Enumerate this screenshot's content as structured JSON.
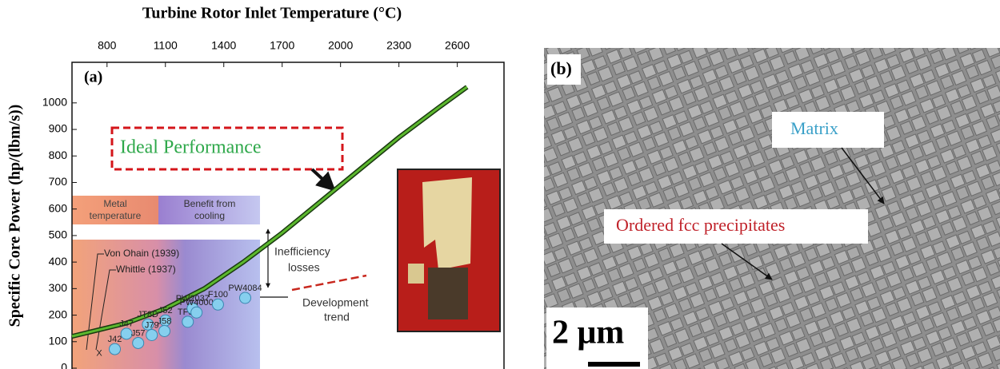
{
  "chart_data": {
    "type": "line",
    "title": "Turbine Rotor Inlet Temperature (°C)",
    "y_label": "Specific Core Power (hp/(lbm/s))",
    "panel_label": "(a)",
    "x": [
      620,
      900,
      1100,
      1300,
      1500,
      1700,
      1900,
      2100,
      2300,
      2500,
      2650
    ],
    "series": [
      {
        "color": "#5cb82e",
        "values": [
          120,
          170,
          225,
          300,
          400,
          510,
          630,
          750,
          870,
          980,
          1060
        ]
      }
    ],
    "xlim": [
      620,
      2840
    ],
    "xticks": [
      800,
      1100,
      1400,
      1700,
      2000,
      2300,
      2600
    ],
    "ylim": [
      0,
      1150
    ],
    "yticks": [
      0,
      100,
      200,
      300,
      400,
      500,
      600,
      700,
      800,
      900,
      1000
    ],
    "points": [
      {
        "label": "X",
        "x": 760,
        "y": 55
      },
      {
        "label": "J42",
        "x": 840,
        "y": 72
      },
      {
        "label": "J47",
        "x": 900,
        "y": 130
      },
      {
        "label": "JT8D",
        "x": 1010,
        "y": 165
      },
      {
        "label": "J79",
        "x": 1030,
        "y": 125
      },
      {
        "label": "J52",
        "x": 1100,
        "y": 180
      },
      {
        "label": "J57",
        "x": 960,
        "y": 95
      },
      {
        "label": "J58",
        "x": 1095,
        "y": 140
      },
      {
        "label": "TF30",
        "x": 1215,
        "y": 175
      },
      {
        "label": "PW2037",
        "x": 1240,
        "y": 225
      },
      {
        "label": "PW4000",
        "x": 1260,
        "y": 210
      },
      {
        "label": "F100",
        "x": 1370,
        "y": 240
      },
      {
        "label": "PW4084",
        "x": 1510,
        "y": 265
      }
    ],
    "annotations": {
      "ideal": "Ideal Performance",
      "metal": [
        "Metal",
        "temperature"
      ],
      "cooling": [
        "Benefit from",
        "cooling"
      ],
      "inefficiency": [
        "Inefficiency",
        "losses"
      ],
      "trend": [
        "Development",
        "trend"
      ],
      "von_ohain": "Von Ohain (1939)",
      "whittle": "Whittle (1937)"
    }
  },
  "micrograph": {
    "panel_label": "(b)",
    "matrix": "Matrix",
    "precipitates": "Ordered fcc precipitates",
    "scale_bar": "2 μm"
  }
}
